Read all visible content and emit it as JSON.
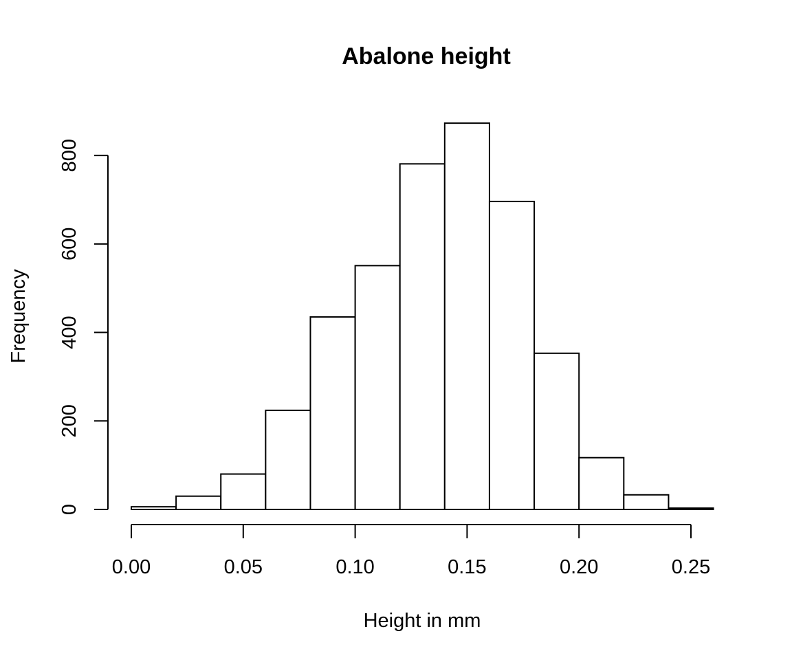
{
  "chart_data": {
    "type": "bar",
    "title": "Abalone height",
    "xlabel": "Height in mm",
    "ylabel": "Frequency",
    "bins": [
      {
        "x0": 0.0,
        "x1": 0.02,
        "count": 6
      },
      {
        "x0": 0.02,
        "x1": 0.04,
        "count": 30
      },
      {
        "x0": 0.04,
        "x1": 0.06,
        "count": 80
      },
      {
        "x0": 0.06,
        "x1": 0.08,
        "count": 224
      },
      {
        "x0": 0.08,
        "x1": 0.1,
        "count": 435
      },
      {
        "x0": 0.1,
        "x1": 0.12,
        "count": 551
      },
      {
        "x0": 0.12,
        "x1": 0.14,
        "count": 781
      },
      {
        "x0": 0.14,
        "x1": 0.16,
        "count": 873
      },
      {
        "x0": 0.16,
        "x1": 0.18,
        "count": 696
      },
      {
        "x0": 0.18,
        "x1": 0.2,
        "count": 353
      },
      {
        "x0": 0.2,
        "x1": 0.22,
        "count": 117
      },
      {
        "x0": 0.22,
        "x1": 0.24,
        "count": 33
      },
      {
        "x0": 0.24,
        "x1": 0.26,
        "count": 3
      }
    ],
    "xlim": [
      0,
      0.26
    ],
    "ylim": [
      0,
      900
    ],
    "xticks": [
      0.0,
      0.05,
      0.1,
      0.15,
      0.2,
      0.25
    ],
    "xtick_labels": [
      "0.00",
      "0.05",
      "0.10",
      "0.15",
      "0.20",
      "0.25"
    ],
    "yticks": [
      0,
      200,
      400,
      600,
      800
    ],
    "ytick_labels": [
      "0",
      "200",
      "400",
      "600",
      "800"
    ],
    "grid": false
  }
}
